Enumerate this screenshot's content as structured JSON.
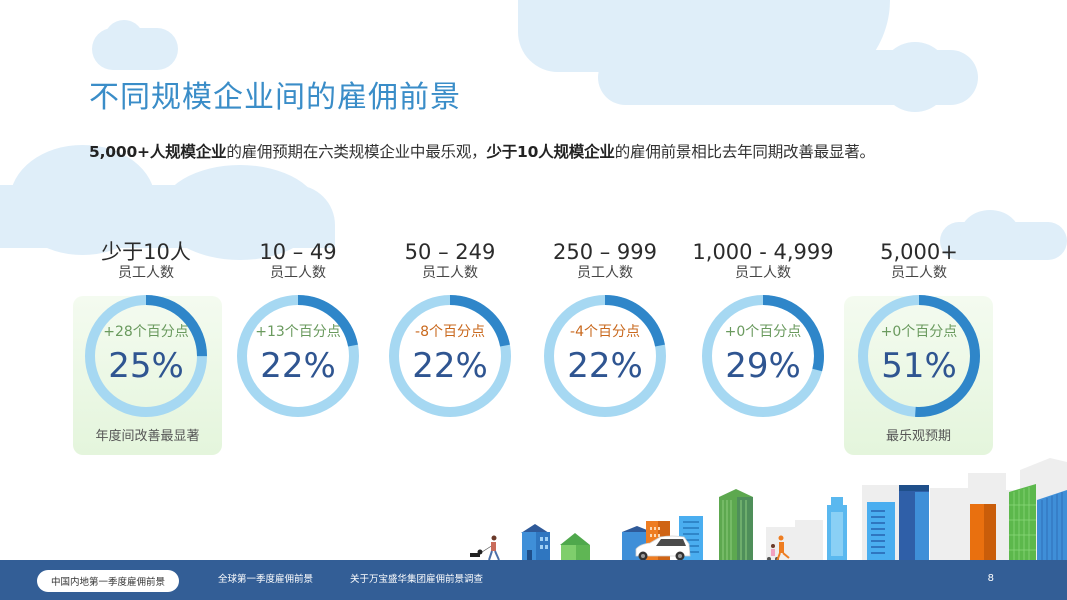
{
  "header": {
    "title": "不同规模企业间的雇佣前景",
    "subtitle_parts": {
      "bold1": "5,000+人规模企业",
      "text1": "的雇佣预期在六类规模企业中最乐观，",
      "bold2": "少于10人规模企业",
      "text2": "的雇佣前景相比去年同期改善最显著。"
    }
  },
  "colors": {
    "title": "#3a8dc8",
    "ring_track": "#a6d8f2",
    "ring_value": "#2f86c9",
    "pct_text": "#2f5591",
    "change_positive": "#6a9a5e",
    "change_negative": "#c9691e",
    "footer_bg": "#335e96",
    "highlight_bg": "#e6f5de"
  },
  "chart_data": {
    "type": "donut",
    "title": "不同规模企业间的雇佣前景",
    "unit_label": "员工人数",
    "categories": [
      "少于10人",
      "10 – 49",
      "50 – 249",
      "250 – 999",
      "1,000 - 4,999",
      "5,000+"
    ],
    "values": [
      25,
      22,
      22,
      22,
      29,
      51
    ],
    "change_labels": [
      "+28个百分点",
      "+13个百分点",
      "-8个百分点",
      "-4个百分点",
      "+0个百分点",
      "+0个百分点"
    ],
    "change_values": [
      28,
      13,
      -8,
      -4,
      0,
      0
    ],
    "highlights": [
      {
        "index": 0,
        "note": "年度间改善最显著"
      },
      {
        "index": 5,
        "note": "最乐观预期"
      }
    ]
  },
  "columns": [
    {
      "label": "少于10人",
      "sub": "员工人数",
      "pct": "25%",
      "value": 25,
      "change": "+28个百分点",
      "trend": "positive"
    },
    {
      "label": "10 – 49",
      "sub": "员工人数",
      "pct": "22%",
      "value": 22,
      "change": "+13个百分点",
      "trend": "positive"
    },
    {
      "label": "50 – 249",
      "sub": "员工人数",
      "pct": "22%",
      "value": 22,
      "change": "-8个百分点",
      "trend": "negative"
    },
    {
      "label": "250 – 999",
      "sub": "员工人数",
      "pct": "22%",
      "value": 22,
      "change": "-4个百分点",
      "trend": "negative"
    },
    {
      "label": "1,000 - 4,999",
      "sub": "员工人数",
      "pct": "29%",
      "value": 29,
      "change": "+0个百分点",
      "trend": "positive"
    },
    {
      "label": "5,000+",
      "sub": "员工人数",
      "pct": "51%",
      "value": 51,
      "change": "+0个百分点",
      "trend": "positive"
    }
  ],
  "highlight_notes": {
    "first": "年度间改善最显著",
    "last": "最乐观预期"
  },
  "footer": {
    "tabs": [
      {
        "label": "中国内地第一季度雇佣前景",
        "active": true
      },
      {
        "label": "全球第一季度雇佣前景",
        "active": false
      },
      {
        "label": "关于万宝盛华集团雇佣前景调查",
        "active": false
      }
    ],
    "page_number": "8"
  }
}
